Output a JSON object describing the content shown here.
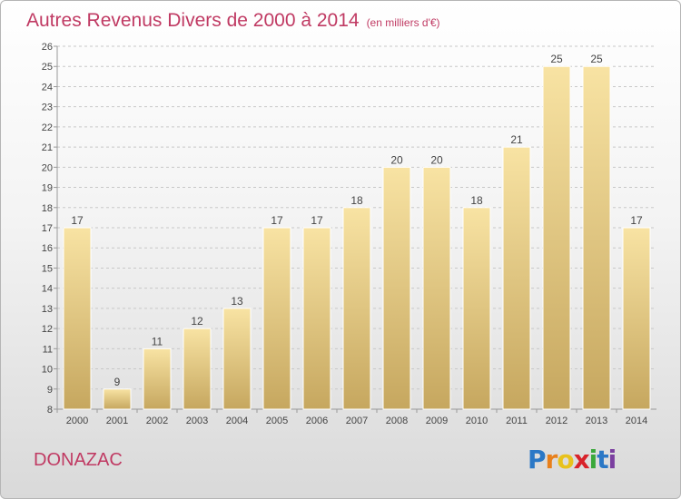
{
  "title": "Autres Revenus Divers de 2000 à 2014",
  "subtitle": "(en milliers d'€)",
  "place": "DONAZAC",
  "logo": {
    "letters": [
      "P",
      "r",
      "o",
      "x",
      "i",
      "t",
      "i"
    ],
    "colors": [
      "#2b78c6",
      "#e8801c",
      "#e8c21c",
      "#d8222a",
      "#3aa83a",
      "#2b78c6",
      "#7b3fa0"
    ]
  },
  "colors": {
    "title": "#c03a63",
    "bar_light": "#f7e0a0",
    "bar_dark": "#c4a45c",
    "grid": "#c8c8c8"
  },
  "chart_data": {
    "type": "bar",
    "categories": [
      "2000",
      "2001",
      "2002",
      "2003",
      "2004",
      "2005",
      "2006",
      "2007",
      "2008",
      "2009",
      "2010",
      "2011",
      "2012",
      "2013",
      "2014"
    ],
    "values": [
      17,
      9,
      11,
      12,
      13,
      17,
      17,
      18,
      20,
      20,
      18,
      21,
      25,
      25,
      17
    ],
    "ylim": [
      8,
      26
    ],
    "yticks": [
      8,
      9,
      10,
      11,
      12,
      13,
      14,
      15,
      16,
      17,
      18,
      19,
      20,
      21,
      22,
      23,
      24,
      25,
      26
    ],
    "grid": "horizontal-dashed",
    "legend": "none"
  }
}
